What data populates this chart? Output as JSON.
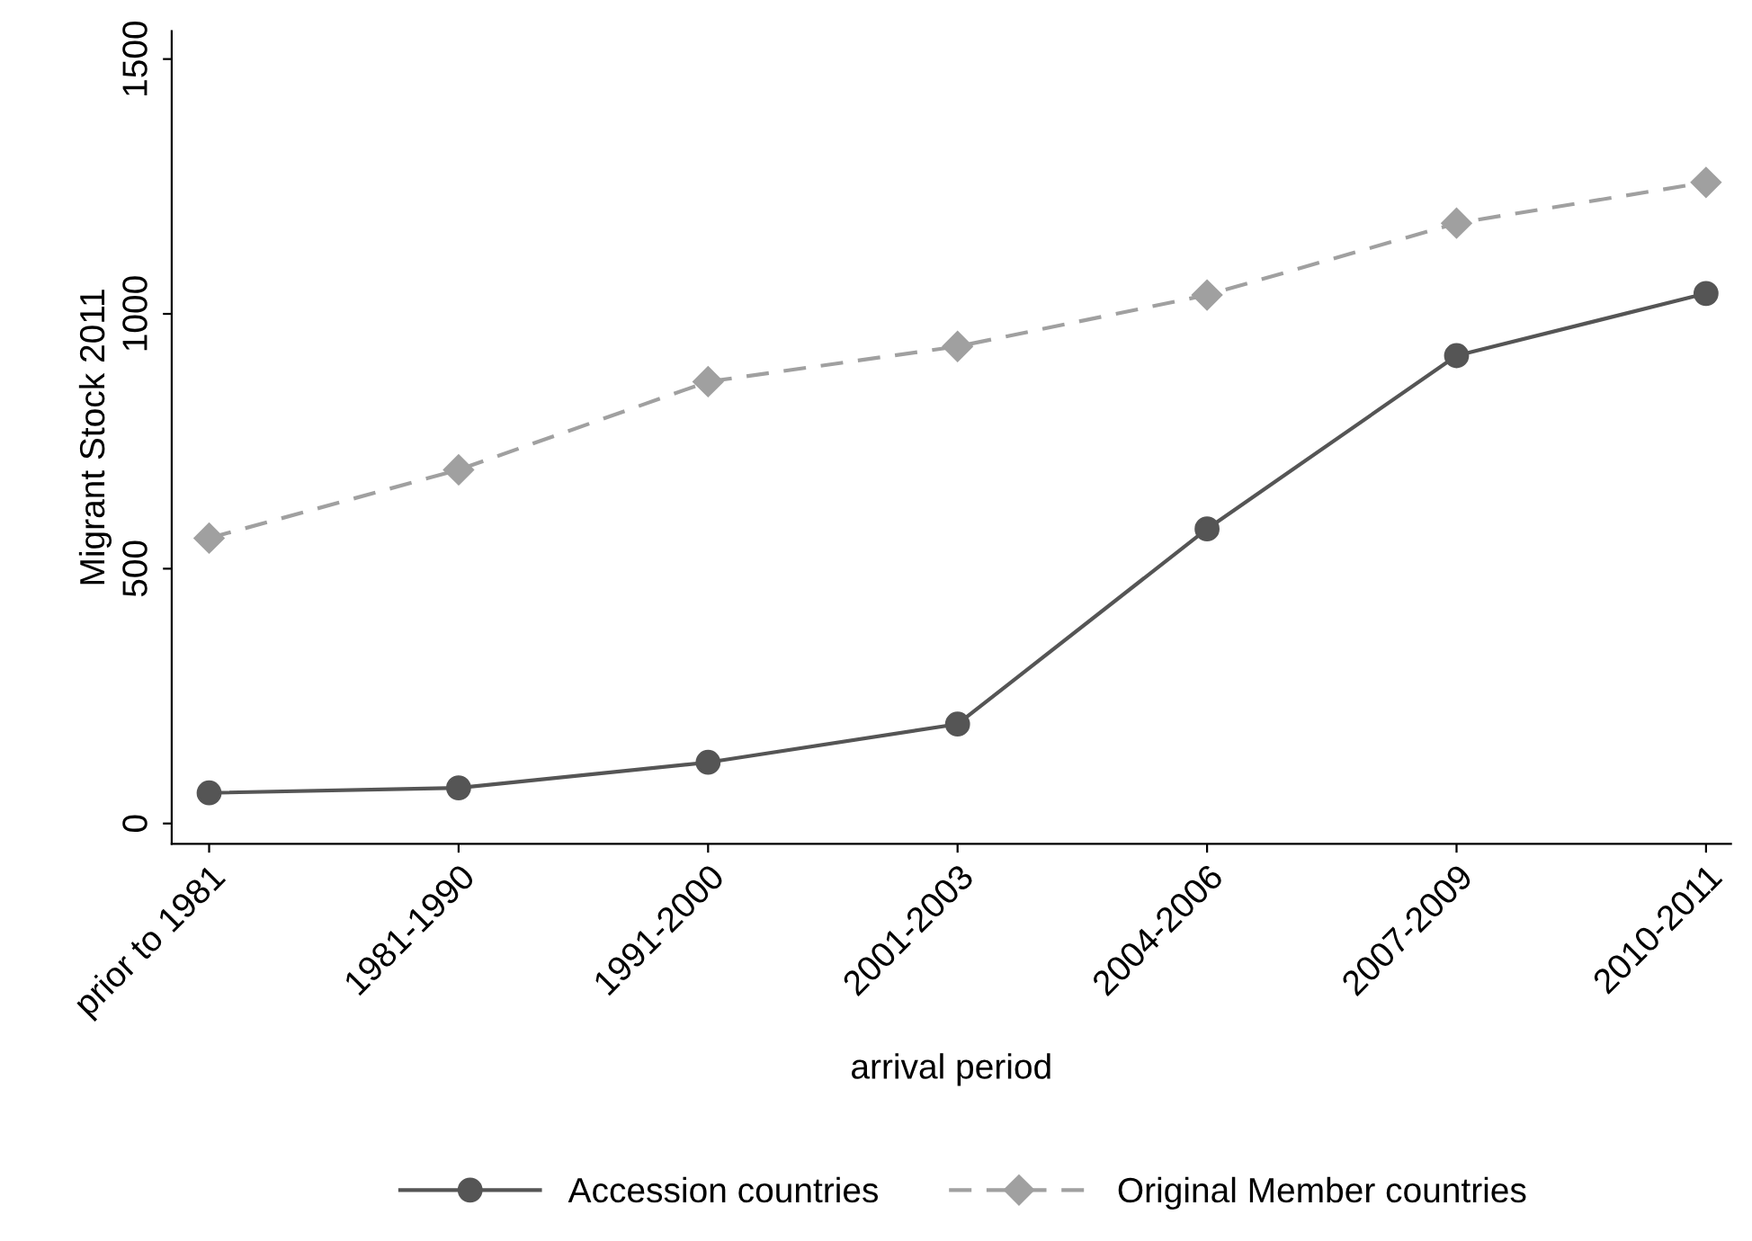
{
  "chart_data": {
    "type": "line",
    "xlabel": "arrival period",
    "ylabel": "Migrant Stock 2011",
    "categories": [
      "prior to 1981",
      "1981-1990",
      "1991-2000",
      "2001-2003",
      "2004-2006",
      "2007-2009",
      "2010-2011"
    ],
    "series": [
      {
        "name": "Accession countries",
        "color": "#555555",
        "values": [
          60,
          70,
          120,
          195,
          578,
          918,
          1040
        ],
        "marker": "circle",
        "line_style": "solid"
      },
      {
        "name": "Original Member countries",
        "color": "#a0a0a0",
        "values": [
          560,
          694,
          867,
          936,
          1037,
          1178,
          1258
        ],
        "marker": "diamond",
        "line_style": "dashed"
      }
    ],
    "ylim": [
      -40,
      1555
    ],
    "yticks": [
      0,
      500,
      1000,
      1500
    ],
    "grid": false,
    "legend": "bottom"
  }
}
